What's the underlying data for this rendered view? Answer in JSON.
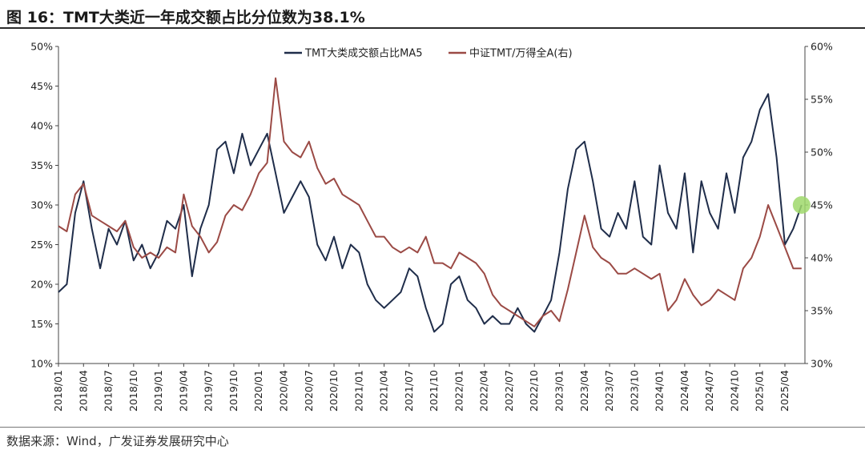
{
  "header": {
    "title": "图 16：TMT大类近一年成交额占比分位数为38.1%"
  },
  "footer": {
    "source": "数据来源：Wind，广发证券发展研究中心"
  },
  "chart_data": {
    "type": "line",
    "title": "图 16：TMT大类近一年成交额占比分位数为38.1%",
    "y_left": {
      "range": [
        10,
        50
      ],
      "ticks": [
        "10%",
        "15%",
        "20%",
        "25%",
        "30%",
        "35%",
        "40%",
        "45%",
        "50%"
      ]
    },
    "y_right": {
      "range": [
        30,
        60
      ],
      "ticks": [
        "30%",
        "35%",
        "40%",
        "45%",
        "50%",
        "55%",
        "60%"
      ]
    },
    "x_ticks": [
      "2018/01",
      "2018/04",
      "2018/07",
      "2018/10",
      "2019/01",
      "2019/04",
      "2019/07",
      "2019/10",
      "2020/01",
      "2020/04",
      "2020/07",
      "2020/10",
      "2021/01",
      "2021/04",
      "2021/07",
      "2021/10",
      "2022/01",
      "2022/04",
      "2022/07",
      "2022/10",
      "2023/01",
      "2023/04",
      "2023/07",
      "2023/10",
      "2024/01",
      "2024/04",
      "2024/07",
      "2024/10",
      "2025/01",
      "2025/04"
    ],
    "legend_position": "top-center",
    "grid": false,
    "colors": {
      "series1": "#1f2d4a",
      "series2": "#9b4a45",
      "marker": "#9fd86b"
    },
    "series": [
      {
        "name": "TMT大类成交额占比MA5",
        "axis": "left",
        "x": [
          "2018/01",
          "2018/02",
          "2018/03",
          "2018/04",
          "2018/05",
          "2018/06",
          "2018/07",
          "2018/08",
          "2018/09",
          "2018/10",
          "2018/11",
          "2018/12",
          "2019/01",
          "2019/02",
          "2019/03",
          "2019/04",
          "2019/05",
          "2019/06",
          "2019/07",
          "2019/08",
          "2019/09",
          "2019/10",
          "2019/11",
          "2019/12",
          "2020/01",
          "2020/02",
          "2020/03",
          "2020/04",
          "2020/05",
          "2020/06",
          "2020/07",
          "2020/08",
          "2020/09",
          "2020/10",
          "2020/11",
          "2020/12",
          "2021/01",
          "2021/02",
          "2021/03",
          "2021/04",
          "2021/05",
          "2021/06",
          "2021/07",
          "2021/08",
          "2021/09",
          "2021/10",
          "2021/11",
          "2021/12",
          "2022/01",
          "2022/02",
          "2022/03",
          "2022/04",
          "2022/05",
          "2022/06",
          "2022/07",
          "2022/08",
          "2022/09",
          "2022/10",
          "2022/11",
          "2022/12",
          "2023/01",
          "2023/02",
          "2023/03",
          "2023/04",
          "2023/05",
          "2023/06",
          "2023/07",
          "2023/08",
          "2023/09",
          "2023/10",
          "2023/11",
          "2023/12",
          "2024/01",
          "2024/02",
          "2024/03",
          "2024/04",
          "2024/05",
          "2024/06",
          "2024/07",
          "2024/08",
          "2024/09",
          "2024/10",
          "2024/11",
          "2024/12",
          "2025/01",
          "2025/02",
          "2025/03",
          "2025/04",
          "2025/05",
          "2025/06"
        ],
        "y": [
          19,
          20,
          29,
          33,
          27,
          22,
          27,
          25,
          28,
          23,
          25,
          22,
          24,
          28,
          27,
          30,
          21,
          27,
          30,
          37,
          38,
          34,
          39,
          35,
          37,
          39,
          34,
          29,
          31,
          33,
          31,
          25,
          23,
          26,
          22,
          25,
          24,
          20,
          18,
          17,
          18,
          19,
          22,
          21,
          17,
          14,
          15,
          20,
          21,
          18,
          17,
          15,
          16,
          15,
          15,
          17,
          15,
          14,
          16,
          18,
          24,
          32,
          37,
          38,
          33,
          27,
          26,
          29,
          27,
          33,
          26,
          25,
          35,
          29,
          27,
          34,
          24,
          33,
          29,
          27,
          34,
          29,
          36,
          38,
          42,
          44,
          36,
          25,
          27,
          30
        ]
      },
      {
        "name": "中证TMT/万得全A(右)",
        "axis": "right",
        "x": [
          "2018/01",
          "2018/02",
          "2018/03",
          "2018/04",
          "2018/05",
          "2018/06",
          "2018/07",
          "2018/08",
          "2018/09",
          "2018/10",
          "2018/11",
          "2018/12",
          "2019/01",
          "2019/02",
          "2019/03",
          "2019/04",
          "2019/05",
          "2019/06",
          "2019/07",
          "2019/08",
          "2019/09",
          "2019/10",
          "2019/11",
          "2019/12",
          "2020/01",
          "2020/02",
          "2020/03",
          "2020/04",
          "2020/05",
          "2020/06",
          "2020/07",
          "2020/08",
          "2020/09",
          "2020/10",
          "2020/11",
          "2020/12",
          "2021/01",
          "2021/02",
          "2021/03",
          "2021/04",
          "2021/05",
          "2021/06",
          "2021/07",
          "2021/08",
          "2021/09",
          "2021/10",
          "2021/11",
          "2021/12",
          "2022/01",
          "2022/02",
          "2022/03",
          "2022/04",
          "2022/05",
          "2022/06",
          "2022/07",
          "2022/08",
          "2022/09",
          "2022/10",
          "2022/11",
          "2022/12",
          "2023/01",
          "2023/02",
          "2023/03",
          "2023/04",
          "2023/05",
          "2023/06",
          "2023/07",
          "2023/08",
          "2023/09",
          "2023/10",
          "2023/11",
          "2023/12",
          "2024/01",
          "2024/02",
          "2024/03",
          "2024/04",
          "2024/05",
          "2024/06",
          "2024/07",
          "2024/08",
          "2024/09",
          "2024/10",
          "2024/11",
          "2024/12",
          "2025/01",
          "2025/02",
          "2025/03",
          "2025/04",
          "2025/05",
          "2025/06"
        ],
        "y": [
          43,
          42.5,
          46,
          47,
          44,
          43.5,
          43,
          42.5,
          43.5,
          41,
          40,
          40.5,
          40,
          41,
          40.5,
          46,
          43,
          42,
          40.5,
          41.5,
          44,
          45,
          44.5,
          46,
          48,
          49,
          57,
          51,
          50,
          49.5,
          51,
          48.5,
          47,
          47.5,
          46,
          45.5,
          45,
          43.5,
          42,
          42,
          41,
          40.5,
          41,
          40.5,
          42,
          39.5,
          39.5,
          39,
          40.5,
          40,
          39.5,
          38.5,
          36.5,
          35.5,
          35,
          34.5,
          34,
          33.5,
          34.5,
          35,
          34,
          37,
          40.5,
          44,
          41,
          40,
          39.5,
          38.5,
          38.5,
          39,
          38.5,
          38,
          38.5,
          35,
          36,
          38,
          36.5,
          35.5,
          36,
          37,
          36.5,
          36,
          39,
          40,
          42,
          45,
          43,
          41,
          39,
          39
        ]
      }
    ],
    "marker": {
      "series": "TMT大类成交额占比MA5",
      "x": "2025/06",
      "y": 30
    }
  }
}
